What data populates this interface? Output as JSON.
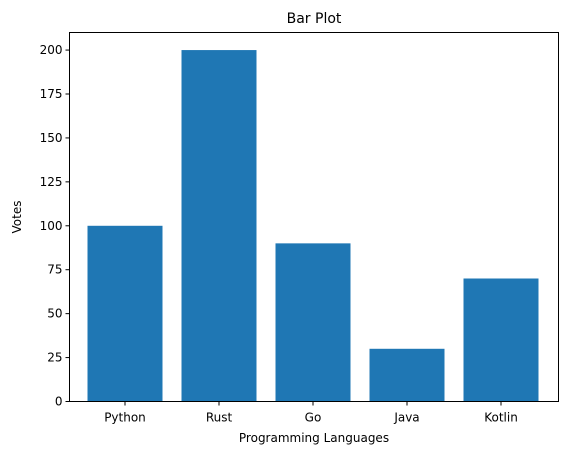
{
  "chart_data": {
    "type": "bar",
    "title": "Bar Plot",
    "xlabel": "Programming Languages",
    "ylabel": "Votes",
    "categories": [
      "Python",
      "Rust",
      "Go",
      "Java",
      "Kotlin"
    ],
    "values": [
      100,
      200,
      90,
      30,
      70
    ],
    "ylim": [
      0,
      210
    ],
    "yticks": [
      0,
      25,
      50,
      75,
      100,
      125,
      150,
      175,
      200
    ],
    "bar_color": "#1f77b4",
    "grid": false,
    "legend": "none"
  }
}
